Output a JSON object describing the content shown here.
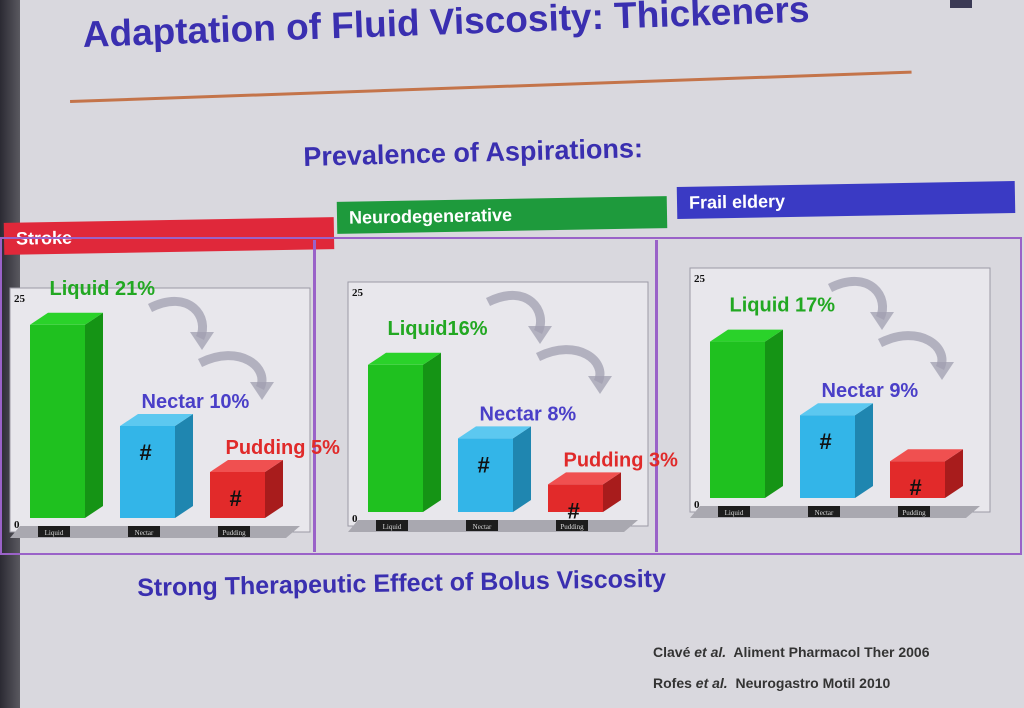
{
  "slide": {
    "title": "Adaptation of Fluid Viscosity: Thickeners",
    "subtitle": "Prevalence of Aspirations:",
    "footer": "Strong Therapeutic Effect of Bolus Viscosity",
    "references": [
      {
        "authors": "Clavé",
        "etal": "et al.",
        "journal": "Aliment Pharmacol Ther 2006"
      },
      {
        "authors": "Rofes",
        "etal": "et al.",
        "journal": "Neurogastro Motil 2010"
      }
    ],
    "colors": {
      "title": "#3a2fb0",
      "liquid": "#1fc11f",
      "nectar": "#33b5e8",
      "pudding": "#e22a2a",
      "stroke_banner": "#e0283a",
      "neuro_banner": "#1e9a3c",
      "frail_banner": "#3a3ac4"
    }
  },
  "chart_data": [
    {
      "type": "bar",
      "group": "Stroke",
      "categories": [
        "Liquid",
        "Nectar",
        "Pudding"
      ],
      "values": [
        21,
        10,
        5
      ],
      "labels": [
        "Liquid 21%",
        "Nectar 10%",
        "Pudding 5%"
      ],
      "markers": [
        "",
        "#",
        "#"
      ],
      "ylim": [
        0,
        25
      ],
      "yticks": [
        "0",
        "25"
      ]
    },
    {
      "type": "bar",
      "group": "Neurodegenerative",
      "categories": [
        "Liquid",
        "Nectar",
        "Pudding"
      ],
      "values": [
        16,
        8,
        3
      ],
      "labels": [
        "Liquid16%",
        "Nectar 8%",
        "Pudding 3%"
      ],
      "markers": [
        "",
        "#",
        "#"
      ],
      "ylim": [
        0,
        25
      ],
      "yticks": [
        "0",
        "25"
      ]
    },
    {
      "type": "bar",
      "group": "Frail eldery",
      "categories": [
        "Liquid",
        "Nectar",
        "Pudding"
      ],
      "values": [
        17,
        9,
        null
      ],
      "labels": [
        "Liquid 17%",
        "Nectar 9%",
        ""
      ],
      "markers": [
        "",
        "#",
        "#"
      ],
      "ylim": [
        0,
        25
      ],
      "yticks": [
        "0",
        "25"
      ]
    }
  ]
}
